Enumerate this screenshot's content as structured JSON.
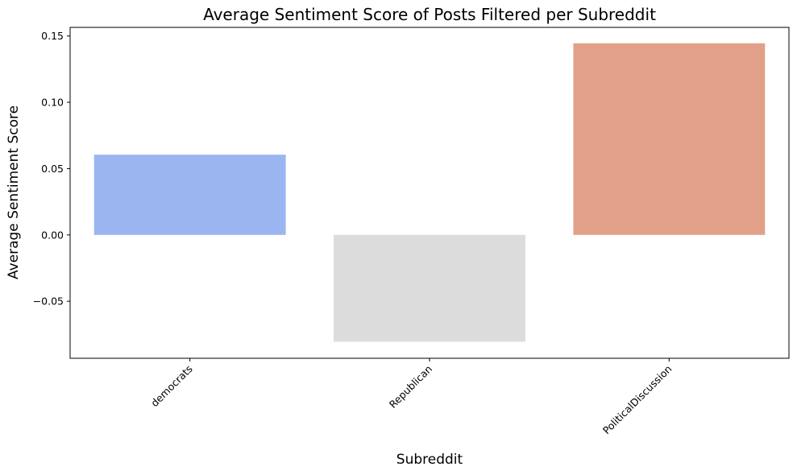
{
  "chart_data": {
    "type": "bar",
    "title": "Average Sentiment Score of Posts Filtered per Subreddit",
    "xlabel": "Subreddit",
    "ylabel": "Average Sentiment Score",
    "categories": [
      "democrats",
      "Republican",
      "PoliticalDiscussion"
    ],
    "values": [
      0.0605,
      -0.0805,
      0.1445
    ],
    "colors": [
      "#9bb5f0",
      "#dcdcdc",
      "#e3a088"
    ],
    "ylim": [
      -0.093,
      0.1565
    ],
    "yticks": [
      -0.05,
      0.0,
      0.05,
      0.1,
      0.15
    ],
    "ytick_labels": [
      "−0.05",
      "0.00",
      "0.05",
      "0.10",
      "0.15"
    ],
    "grid": false,
    "legend": "none"
  }
}
